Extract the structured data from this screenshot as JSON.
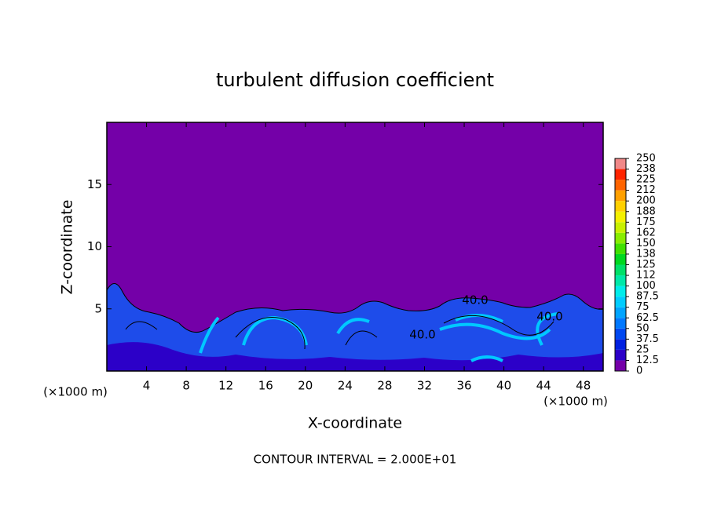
{
  "chart_data": {
    "type": "contour",
    "title": "turbulent diffusion coefficient",
    "xlabel": "X-coordinate",
    "ylabel": "Z-coordinate",
    "x_unit": "(×1000 m)",
    "y_unit": "(×1000 m)",
    "footnote": "CONTOUR INTERVAL = 2.000E+01",
    "xlim": [
      0,
      50
    ],
    "xticks": [
      4,
      8,
      12,
      16,
      20,
      24,
      28,
      32,
      36,
      40,
      44,
      48
    ],
    "ylim": [
      0,
      20
    ],
    "yticks": [
      5,
      10,
      15
    ],
    "contour_labels": [
      "40.0",
      "40.0",
      "40.0"
    ],
    "colorbar": {
      "levels": [
        0,
        12.5,
        25,
        37.5,
        50,
        62.5,
        75,
        87.5,
        100,
        112,
        125,
        138,
        150,
        162,
        175,
        188,
        200,
        212,
        225,
        238,
        250
      ],
      "colors": [
        "#7400a8",
        "#2c00c8",
        "#0020e0",
        "#0048f0",
        "#0078ff",
        "#00a4ff",
        "#00ccff",
        "#00ecea",
        "#00e8a8",
        "#00e068",
        "#00d820",
        "#40e000",
        "#88ec00",
        "#c8f000",
        "#f4f000",
        "#ffd000",
        "#ffa000",
        "#ff6400",
        "#ff2400",
        "#f08888"
      ]
    }
  }
}
